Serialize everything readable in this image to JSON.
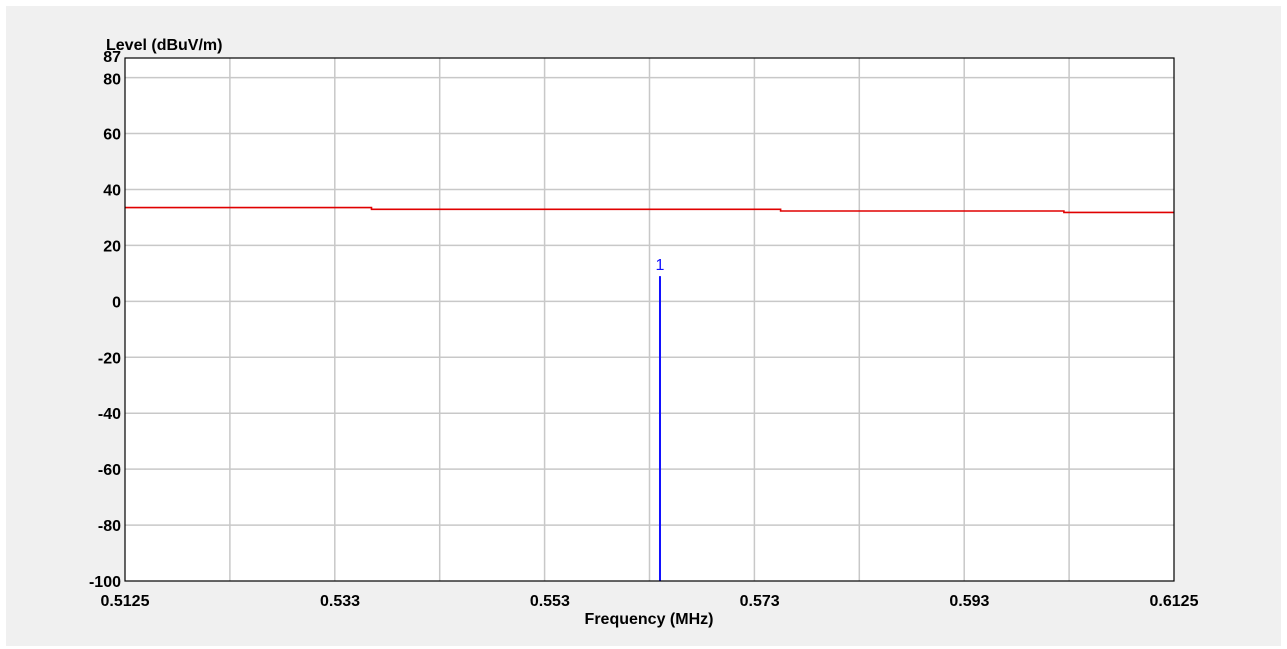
{
  "chart_data": {
    "type": "line",
    "ylabel": "Level (dBuV/m)",
    "xlabel": "Frequency (MHz)",
    "ylim": [
      -100,
      87
    ],
    "xlim": [
      0.5125,
      0.6125
    ],
    "y_ticks": [
      {
        "value": 87,
        "label": "87"
      },
      {
        "value": 80,
        "label": "80"
      },
      {
        "value": 60,
        "label": "60"
      },
      {
        "value": 40,
        "label": "40"
      },
      {
        "value": 20,
        "label": "20"
      },
      {
        "value": 0,
        "label": "0"
      },
      {
        "value": -20,
        "label": "-20"
      },
      {
        "value": -40,
        "label": "-40"
      },
      {
        "value": -60,
        "label": "-60"
      },
      {
        "value": -80,
        "label": "-80"
      },
      {
        "value": -100,
        "label": "-100"
      }
    ],
    "x_ticks": [
      {
        "value": 0.5125,
        "label": "0.5125"
      },
      {
        "value": 0.533,
        "label": "0.533"
      },
      {
        "value": 0.553,
        "label": "0.553"
      },
      {
        "value": 0.573,
        "label": "0.573"
      },
      {
        "value": 0.593,
        "label": "0.593"
      },
      {
        "value": 0.6125,
        "label": "0.6125"
      }
    ],
    "grid": true,
    "series": [
      {
        "color": "#e00000",
        "x": [
          0.5125,
          0.536,
          0.536,
          0.575,
          0.575,
          0.602,
          0.602,
          0.6125
        ],
        "y": [
          33.5,
          33.5,
          32.9,
          32.9,
          32.3,
          32.3,
          31.8,
          31.8
        ]
      }
    ],
    "markers": [
      {
        "label": "1",
        "x": 0.5635,
        "y": 9,
        "color": "#1010ff"
      }
    ]
  }
}
